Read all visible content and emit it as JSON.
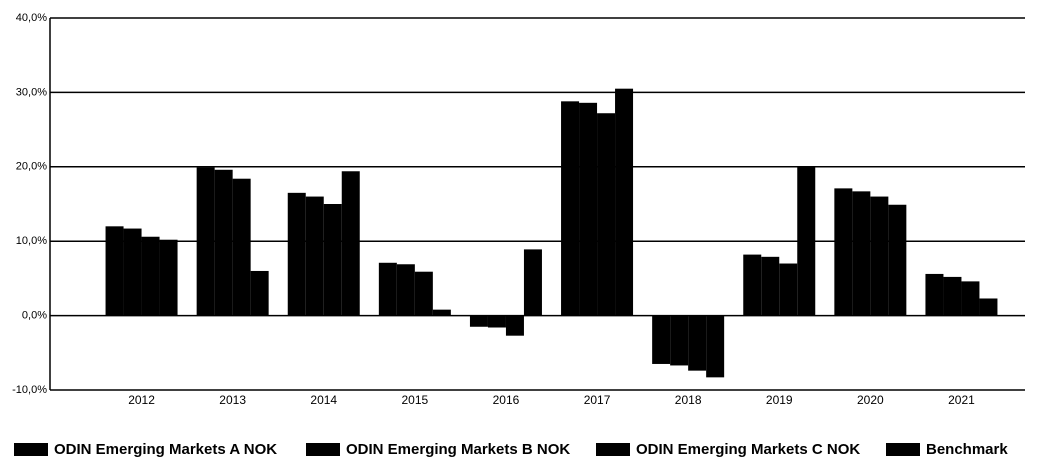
{
  "chart_data": {
    "type": "bar",
    "categories": [
      "2012",
      "2013",
      "2014",
      "2015",
      "2016",
      "2017",
      "2018",
      "2019",
      "2020",
      "2021"
    ],
    "series": [
      {
        "name": "ODIN Emerging Markets A NOK",
        "color": "#000000",
        "values": [
          12.0,
          19.9,
          16.5,
          7.1,
          -1.5,
          28.8,
          -6.5,
          8.2,
          17.1,
          5.6
        ]
      },
      {
        "name": "ODIN Emerging Markets B NOK",
        "color": "#000000",
        "values": [
          11.7,
          19.6,
          16.0,
          6.9,
          -1.6,
          28.6,
          -6.7,
          7.9,
          16.7,
          5.2
        ]
      },
      {
        "name": "ODIN Emerging Markets C NOK",
        "color": "#000000",
        "values": [
          10.6,
          18.4,
          15.0,
          5.9,
          -2.7,
          27.2,
          -7.4,
          7.0,
          16.0,
          4.6
        ]
      },
      {
        "name": "Benchmark",
        "color": "#000000",
        "values": [
          10.2,
          6.0,
          19.4,
          0.8,
          8.9,
          30.5,
          -8.3,
          20.0,
          14.9,
          2.3
        ]
      }
    ],
    "ylim": [
      -10,
      40
    ],
    "yticks": [
      {
        "value": -10,
        "label": "-10,0%"
      },
      {
        "value": 0,
        "label": "0,0%"
      },
      {
        "value": 10,
        "label": "10,0%"
      },
      {
        "value": 20,
        "label": "20,0%"
      },
      {
        "value": 30,
        "label": "30,0%"
      },
      {
        "value": 40,
        "label": "40,0%"
      }
    ],
    "grid": true,
    "legend": "bottom"
  }
}
